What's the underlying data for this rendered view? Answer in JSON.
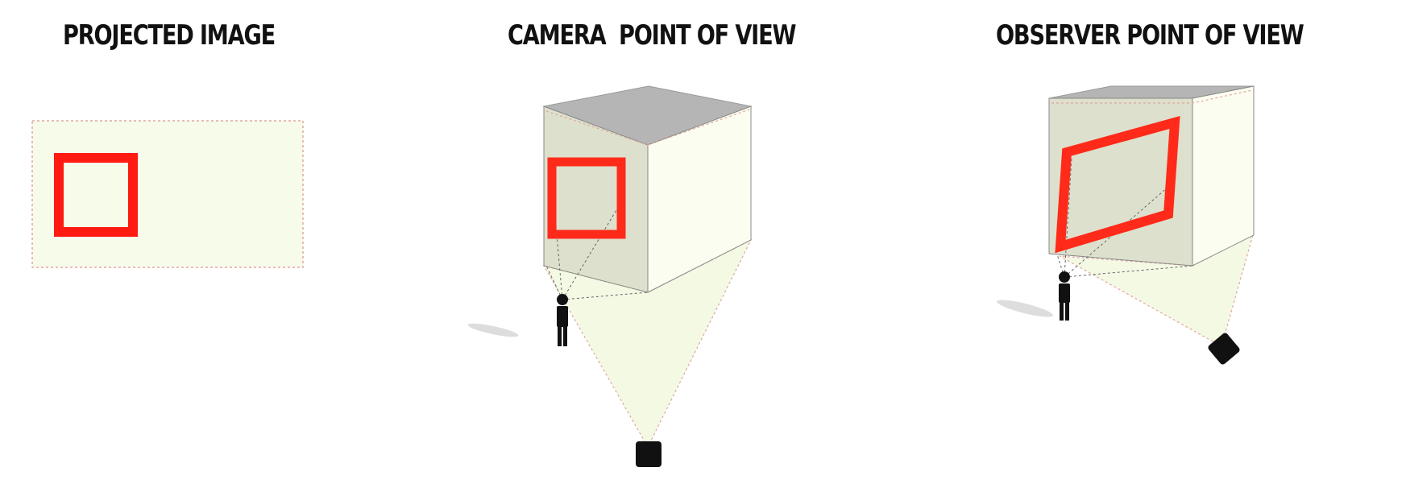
{
  "panels": {
    "projected": {
      "title": "PROJECTED IMAGE"
    },
    "camera": {
      "title": "CAMERA  POINT OF VIEW"
    },
    "observer": {
      "title": "OBSERVER POINT OF VIEW"
    }
  },
  "colors": {
    "projection_fill": "#f7fbea",
    "projection_edge": "#e0a8a0",
    "frame_red": "#ff2a1a",
    "cube_top": "#b5b5b5",
    "cube_left_face": "#dde0cc",
    "cube_right_face": "#fbfdf0",
    "figure": "#111111"
  }
}
